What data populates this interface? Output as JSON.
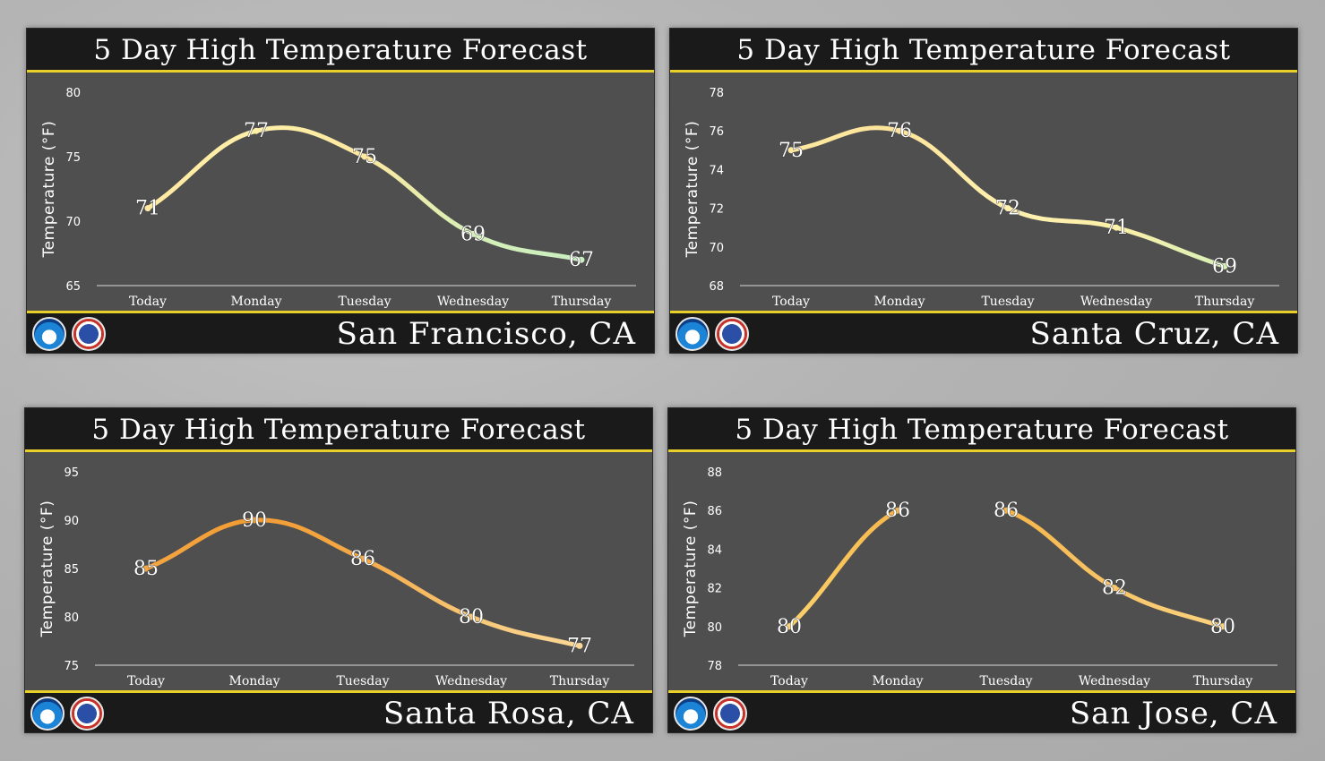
{
  "chart_data": [
    {
      "type": "line",
      "title": "5 Day High Temperature Forecast",
      "location": "San Francisco, CA",
      "ylabel": "Temperature (°F)",
      "categories": [
        "Today",
        "Monday",
        "Tuesday",
        "Wednesday",
        "Thursday"
      ],
      "values": [
        71,
        77,
        75,
        69,
        67
      ],
      "yticks": [
        65,
        70,
        75,
        80
      ],
      "ylim": [
        65,
        80
      ],
      "colors": [
        "#ffe9a3",
        "#fff0a8",
        "#fde8a0",
        "#d6f0b8",
        "#c8eec0"
      ],
      "grid": false
    },
    {
      "type": "line",
      "title": "5 Day High Temperature Forecast",
      "location": "Santa Cruz, CA",
      "ylabel": "Temperature (°F)",
      "categories": [
        "Today",
        "Monday",
        "Tuesday",
        "Wednesday",
        "Thursday"
      ],
      "values": [
        75,
        76,
        72,
        71,
        69
      ],
      "yticks": [
        68,
        70,
        72,
        74,
        76,
        78
      ],
      "ylim": [
        68,
        78
      ],
      "colors": [
        "#fde8a0",
        "#fde49a",
        "#fff0b0",
        "#fdf0a8",
        "#d6f0b8"
      ],
      "grid": false
    },
    {
      "type": "line",
      "title": "5 Day High Temperature Forecast",
      "location": "Santa Rosa, CA",
      "ylabel": "Temperature (°F)",
      "categories": [
        "Today",
        "Monday",
        "Tuesday",
        "Wednesday",
        "Thursday"
      ],
      "values": [
        85,
        90,
        86,
        80,
        77
      ],
      "yticks": [
        75,
        80,
        85,
        90,
        95
      ],
      "ylim": [
        75,
        95
      ],
      "colors": [
        "#f5a642",
        "#f29b32",
        "#f5aa48",
        "#f8c776",
        "#fbd896"
      ],
      "grid": false
    },
    {
      "type": "line",
      "title": "5 Day High Temperature Forecast",
      "location": "San Jose, CA",
      "ylabel": "Temperature (°F)",
      "categories": [
        "Today",
        "Monday",
        "Tuesday",
        "Wednesday",
        "Thursday"
      ],
      "values": [
        80,
        86,
        86,
        82,
        80
      ],
      "yticks": [
        78,
        80,
        82,
        84,
        86,
        88
      ],
      "ylim": [
        78,
        88
      ],
      "colors": [
        "#fbd26e",
        "#f7b548",
        "#f7b548",
        "#f9c66a",
        "#fbd37e"
      ],
      "grid": false
    }
  ]
}
